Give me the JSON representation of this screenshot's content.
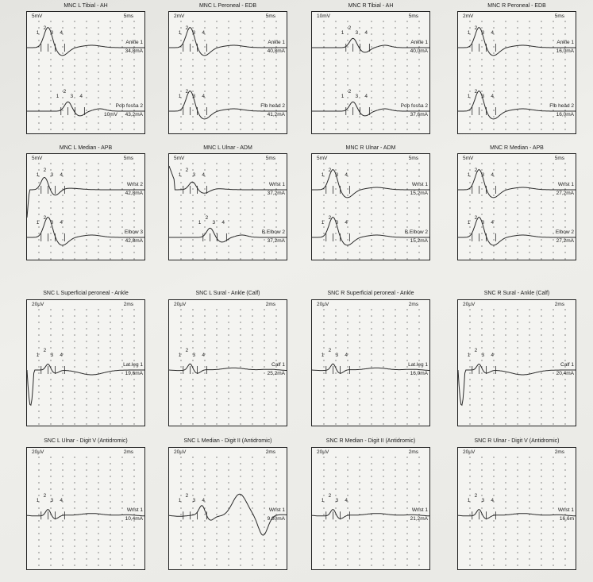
{
  "panels": [
    {
      "title": "MNC L Tibial - AH",
      "amp": "5mV",
      "time": "5ms",
      "traces": [
        {
          "site": "Ankle 1",
          "current": "34,8mA",
          "amp2": "",
          "shape": "cmap",
          "peaks": [
            "1",
            "2",
            "3",
            "4"
          ]
        },
        {
          "site": "Pop fossa 2",
          "current": "43,2mA",
          "amp2": "10mV",
          "shape": "cmap_small",
          "peaks": [
            "1",
            "2",
            "3",
            "4"
          ]
        }
      ]
    },
    {
      "title": "MNC L Peroneal - EDB",
      "amp": "2mV",
      "time": "5ms",
      "traces": [
        {
          "site": "Ankle 1",
          "current": "40,8mA",
          "amp2": "",
          "shape": "cmap",
          "peaks": [
            "1",
            "2",
            "3",
            "4"
          ]
        },
        {
          "site": "Fib head 2",
          "current": "41,2mA",
          "amp2": "",
          "shape": "cmap",
          "peaks": [
            "1",
            "2",
            "3",
            "4"
          ]
        }
      ]
    },
    {
      "title": "MNC R Tibial - AH",
      "amp": "10mV",
      "time": "5ms",
      "traces": [
        {
          "site": "Ankle 1",
          "current": "40,0mA",
          "amp2": "",
          "shape": "cmap_small",
          "peaks": [
            "1",
            "2",
            "3",
            "4"
          ]
        },
        {
          "site": "Pop fossa 2",
          "current": "37,6mA",
          "amp2": "",
          "shape": "cmap_small",
          "peaks": [
            "1",
            "2",
            "3",
            "4"
          ]
        }
      ]
    },
    {
      "title": "MNC R Peroneal - EDB",
      "amp": "2mV",
      "time": "5ms",
      "traces": [
        {
          "site": "Ankle 1",
          "current": "16,0mA",
          "amp2": "",
          "shape": "cmap",
          "peaks": [
            "1",
            "2",
            "3",
            "4"
          ]
        },
        {
          "site": "Fib head 2",
          "current": "16,0mA",
          "amp2": "",
          "shape": "cmap",
          "peaks": [
            "1",
            "2",
            "3",
            "4"
          ]
        }
      ]
    },
    {
      "title": "MNC L Median - APB",
      "amp": "5mV",
      "time": "5ms",
      "traces": [
        {
          "site": "Wrist 2",
          "current": "42,8mA",
          "amp2": "",
          "shape": "cmap_art",
          "peaks": [
            "1",
            "2",
            "3",
            "4"
          ]
        },
        {
          "site": "Elbow 3",
          "current": "42,8mA",
          "amp2": "",
          "shape": "cmap",
          "peaks": [
            "1",
            "2",
            "3",
            "4"
          ]
        }
      ]
    },
    {
      "title": "MNC L Ulnar - ADM",
      "amp": "5mV",
      "time": "5ms",
      "traces": [
        {
          "site": "Wrist 1",
          "current": "37,2mA",
          "amp2": "",
          "shape": "cmap_art2",
          "peaks": [
            "1",
            "2",
            "3",
            "4"
          ]
        },
        {
          "site": "B.Elbow 2",
          "current": "37,2mA",
          "amp2": "",
          "shape": "cmap_small",
          "peaks": [
            "1",
            "2",
            "3",
            "4"
          ]
        }
      ]
    },
    {
      "title": "MNC R Ulnar - ADM",
      "amp": "5mV",
      "time": "5ms",
      "traces": [
        {
          "site": "Wrist 1",
          "current": "15,2mA",
          "amp2": "",
          "shape": "cmap",
          "peaks": [
            "1",
            "2",
            "3",
            "4"
          ]
        },
        {
          "site": "B.Elbow 2",
          "current": "15,2mA",
          "amp2": "",
          "shape": "cmap",
          "peaks": [
            "1",
            "2",
            "3",
            "4"
          ]
        }
      ]
    },
    {
      "title": "MNC R Median - APB",
      "amp": "5mV",
      "time": "5ms",
      "traces": [
        {
          "site": "Wrist 1",
          "current": "27,2mA",
          "amp2": "",
          "shape": "cmap",
          "peaks": [
            "1",
            "2",
            "3",
            "4"
          ]
        },
        {
          "site": "Elbow 2",
          "current": "27,2mA",
          "amp2": "",
          "shape": "cmap",
          "peaks": [
            "1",
            "2",
            "3",
            "4"
          ]
        }
      ]
    },
    {
      "title": "SNC L Superficial peroneal - Ankle",
      "amp": "20µV",
      "time": "2ms",
      "traces": [
        {
          "site": "Lat.leg 1",
          "current": "19,6mA",
          "amp2": "",
          "shape": "snap_art",
          "peaks": [
            "1",
            "2",
            "3",
            "4"
          ]
        }
      ]
    },
    {
      "title": "SNC L Sural - Ankle (Calf)",
      "amp": "20µV",
      "time": "2ms",
      "traces": [
        {
          "site": "Calf 1",
          "current": "25,2mA",
          "amp2": "",
          "shape": "snap",
          "peaks": [
            "1",
            "2",
            "3",
            "4"
          ]
        }
      ]
    },
    {
      "title": "SNC R Superficial peroneal - Ankle",
      "amp": "20µV",
      "time": "2ms",
      "traces": [
        {
          "site": "Lat.leg 1",
          "current": "16,0mA",
          "amp2": "",
          "shape": "snap",
          "peaks": [
            "1",
            "2",
            "3",
            "4"
          ]
        }
      ]
    },
    {
      "title": "SNC R Sural - Ankle (Calf)",
      "amp": "20µV",
      "time": "2ms",
      "traces": [
        {
          "site": "Calf 1",
          "current": "20,4mA",
          "amp2": "",
          "shape": "snap_art",
          "peaks": [
            "1",
            "2",
            "3",
            "4"
          ]
        }
      ]
    },
    {
      "title": "SNC L Ulnar - Digit V (Antidromic)",
      "amp": "20µV",
      "time": "2ms",
      "traces": [
        {
          "site": "Wrist 1",
          "current": "10,4mA",
          "amp2": "",
          "shape": "snap",
          "peaks": [
            "1",
            "2",
            "3",
            "4"
          ]
        }
      ]
    },
    {
      "title": "SNC L Median - Digit II (Antidromic)",
      "amp": "20µV",
      "time": "2ms",
      "traces": [
        {
          "site": "Wrist 1",
          "current": "9,80mA",
          "amp2": "",
          "shape": "snap_big",
          "peaks": [
            "1",
            "2",
            "3",
            "4"
          ]
        }
      ]
    },
    {
      "title": "SNC R Median - Digit II (Antidromic)",
      "amp": "20µV",
      "time": "2ms",
      "traces": [
        {
          "site": "Wrist 1",
          "current": "21,2mA",
          "amp2": "",
          "shape": "snap",
          "peaks": [
            "1",
            "2",
            "3",
            "4"
          ]
        }
      ]
    },
    {
      "title": "SNC R Ulnar - Digit V (Antidromic)",
      "amp": "20µV",
      "time": "2ms",
      "traces": [
        {
          "site": "Wrist 1",
          "current": "16,6m",
          "amp2": "",
          "shape": "snap",
          "peaks": [
            "1",
            "2",
            "3",
            "4"
          ]
        }
      ]
    }
  ],
  "colors": {
    "trace": "#2a2a2a",
    "grid": "#3a3a3a",
    "paper": "#f4f4f1"
  }
}
